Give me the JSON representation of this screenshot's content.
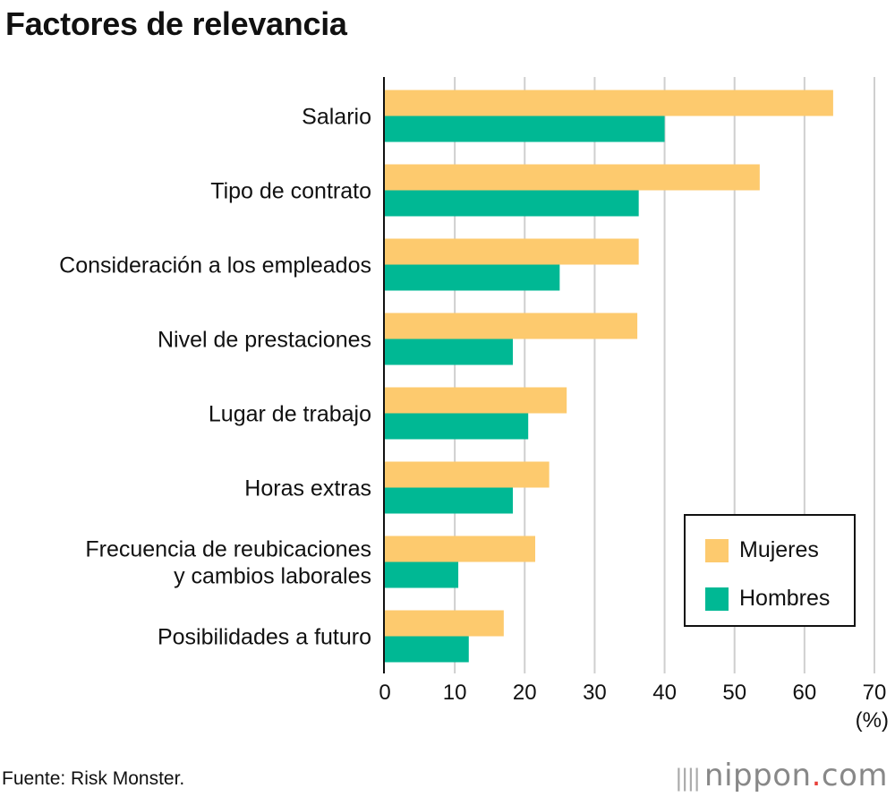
{
  "chart_data": {
    "type": "bar",
    "orientation": "horizontal",
    "title": "Factores de relevancia",
    "categories": [
      [
        "Salario"
      ],
      [
        "Tipo de contrato"
      ],
      [
        "Consideración a los empleados"
      ],
      [
        "Nivel de prestaciones"
      ],
      [
        "Lugar de trabajo"
      ],
      [
        "Horas extras"
      ],
      [
        "Frecuencia de reubicaciones",
        "y cambios laborales"
      ],
      [
        "Posibilidades a futuro"
      ]
    ],
    "series": [
      {
        "name": "Mujeres",
        "color": "#fdca6e",
        "values": [
          64.1,
          53.6,
          36.3,
          36.1,
          26.0,
          23.5,
          21.5,
          17.0
        ]
      },
      {
        "name": "Hombres",
        "color": "#00b894",
        "values": [
          40.0,
          36.3,
          25.0,
          18.3,
          20.5,
          18.3,
          10.5,
          12.0
        ]
      }
    ],
    "xlim": [
      0,
      70
    ],
    "xticks": [
      "0",
      "10",
      "20",
      "30",
      "40",
      "50",
      "60",
      "70"
    ],
    "xunit": "(%)",
    "grid": true,
    "legend_position": "bottom-right"
  },
  "source": "Fuente: Risk Monster.",
  "brand": {
    "name": "nippon",
    "dot": ".",
    "tld": "com"
  }
}
